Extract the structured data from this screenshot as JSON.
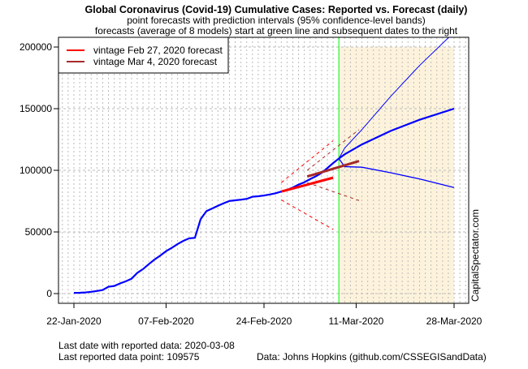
{
  "chart_data": {
    "type": "line",
    "title": "Global Coronavirus (Covid-19) Cumulative Cases: Reported vs. Forecast (daily)",
    "subtitle1": "point forecasts with prediction intervals (95% confidence-level bands)",
    "subtitle2": "forecasts (average of 8 models) start at green line and subsequent dates to the right",
    "x_start_date": "2020-01-22",
    "x_ticks": [
      {
        "day": 0,
        "label": "22-Jan-2020"
      },
      {
        "day": 16,
        "label": "07-Feb-2020"
      },
      {
        "day": 33,
        "label": "24-Feb-2020"
      },
      {
        "day": 49,
        "label": "11-Mar-2020"
      },
      {
        "day": 66,
        "label": "28-Mar-2020"
      }
    ],
    "y_ticks": [
      0,
      50000,
      100000,
      150000,
      200000
    ],
    "ylim": [
      -8000,
      208000
    ],
    "xlim": [
      -3,
      69
    ],
    "forecast_start_day": 46,
    "forecast_end_day": 66,
    "legend": {
      "placement": "top-left",
      "entries": [
        {
          "label": "vintage Feb 27, 2020 forecast",
          "color": "#ff0000"
        },
        {
          "label": "vintage Mar 4, 2020 forecast",
          "color": "#a52a2a"
        }
      ]
    },
    "reported": {
      "start_day": 0,
      "values": [
        555,
        654,
        941,
        1434,
        2118,
        2927,
        5578,
        6166,
        8234,
        9927,
        12038,
        16787,
        19881,
        23892,
        27635,
        30817,
        34391,
        37120,
        40150,
        42762,
        44802,
        45221,
        60368,
        66885,
        69030,
        71224,
        73258,
        75136,
        75639,
        76197,
        76819,
        78572,
        78958,
        79561,
        80406,
        81388,
        82746,
        84112,
        86011,
        88369,
        90306,
        92840,
        95120,
        97886,
        101801,
        105847,
        109575
      ]
    },
    "forecast_current": {
      "days": [
        46,
        47,
        50,
        55,
        60,
        66
      ],
      "point": [
        109575,
        113000,
        121000,
        132000,
        141000,
        150000
      ],
      "upper": [
        109575,
        118000,
        133000,
        160000,
        185000,
        212000
      ],
      "lower": [
        109575,
        103000,
        102500,
        98000,
        93000,
        86000
      ]
    },
    "forecast_feb27": {
      "days": [
        36,
        45
      ],
      "point": [
        82746,
        94000
      ],
      "upper": [
        90000,
        124000
      ],
      "lower": [
        76000,
        52000
      ]
    },
    "forecast_mar4": {
      "days": [
        40.5,
        49.5
      ],
      "point": [
        95000,
        107500
      ],
      "upper": [
        100000,
        133000
      ],
      "lower": [
        90000,
        75500
      ]
    },
    "colors": {
      "reported": "#0000ff",
      "feb27": "#ff0000",
      "mar4": "#a52a2a",
      "green": "#00ff00",
      "shade": "#fdf3dc"
    },
    "watermark": "CapitalSpectator.com",
    "footer": {
      "last_date": "Last date with reported data:  2020-03-08",
      "last_point": "Last reported data point:  109575",
      "source": "Data: Johns Hopkins (github.com/CSSEGISandData)"
    }
  }
}
